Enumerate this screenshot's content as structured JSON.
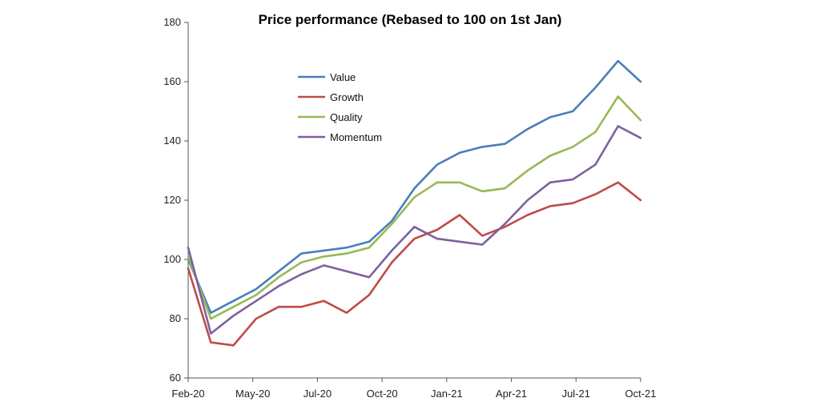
{
  "chart_data": {
    "type": "line",
    "title": "Price performance (Rebased to 100 on 1st Jan)",
    "xlabel": "",
    "ylabel": "",
    "ylim": [
      60,
      180
    ],
    "y_ticks": [
      "60",
      "80",
      "100",
      "120",
      "140",
      "160",
      "180"
    ],
    "x_ticks": [
      "Feb-20",
      "May-20",
      "Jul-20",
      "Oct-20",
      "Jan-21",
      "Apr-21",
      "Jul-21",
      "Oct-21"
    ],
    "grid": false,
    "legend_position": "top-left",
    "x": [
      "Feb-20",
      "Mar-20",
      "Apr-20",
      "May-20",
      "Jun-20",
      "Jul-20",
      "Aug-20",
      "Sep-20",
      "Oct-20",
      "Nov-20",
      "Dec-20",
      "Jan-21",
      "Feb-21",
      "Mar-21",
      "Apr-21",
      "May-21",
      "Jun-21",
      "Jul-21",
      "Aug-21",
      "Sep-21",
      "Oct-21"
    ],
    "series": [
      {
        "name": "Value",
        "color": "#4a7ebb",
        "values": [
          100,
          82,
          86,
          90,
          96,
          102,
          103,
          104,
          106,
          113,
          124,
          132,
          136,
          138,
          139,
          144,
          148,
          150,
          158,
          167,
          160
        ]
      },
      {
        "name": "Growth",
        "color": "#be4b48",
        "values": [
          97,
          72,
          71,
          80,
          84,
          84,
          86,
          82,
          88,
          99,
          107,
          110,
          115,
          108,
          111,
          115,
          118,
          119,
          122,
          126,
          120
        ]
      },
      {
        "name": "Quality",
        "color": "#98b954",
        "values": [
          101,
          80,
          84,
          88,
          94,
          99,
          101,
          102,
          104,
          112,
          121,
          126,
          126,
          123,
          124,
          130,
          135,
          138,
          143,
          155,
          147
        ]
      },
      {
        "name": "Momentum",
        "color": "#7d60a0",
        "values": [
          104,
          75,
          81,
          86,
          91,
          95,
          98,
          96,
          94,
          103,
          111,
          107,
          106,
          105,
          112,
          120,
          126,
          127,
          132,
          145,
          141
        ]
      }
    ]
  }
}
